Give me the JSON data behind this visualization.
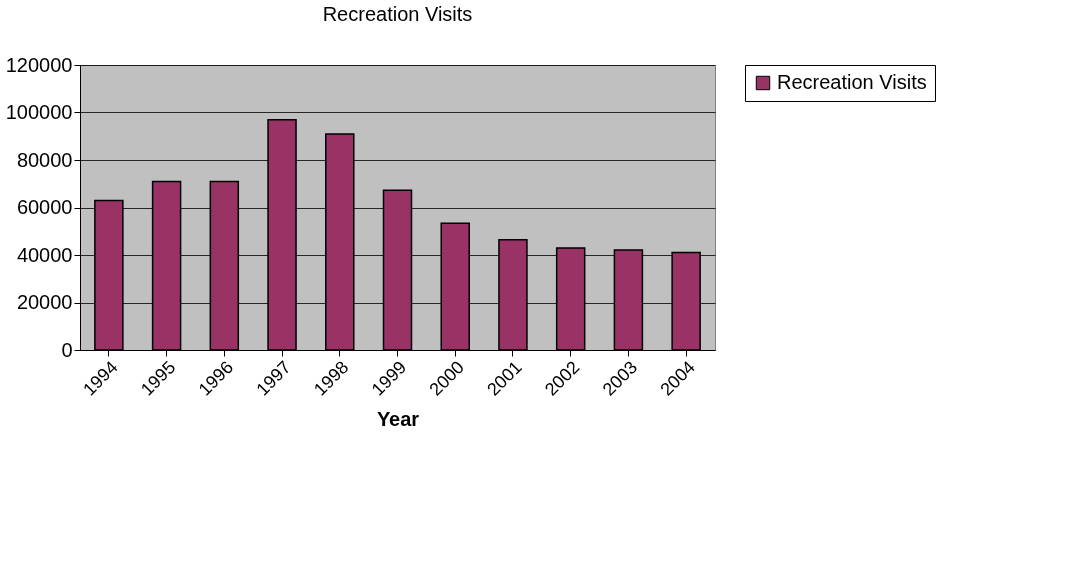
{
  "chart_data": {
    "type": "bar",
    "title": "Recreation Visits",
    "xlabel": "Year",
    "categories": [
      "1994",
      "1995",
      "1996",
      "1997",
      "1998",
      "1999",
      "2000",
      "2001",
      "2002",
      "2003",
      "2004"
    ],
    "series": [
      {
        "name": "Recreation Visits",
        "color": "#993366",
        "values": [
          63000,
          71000,
          71000,
          97000,
          91000,
          67300,
          53400,
          46400,
          42900,
          42100,
          41100
        ]
      }
    ],
    "ylim": [
      0,
      120000
    ],
    "yticks": [
      0,
      20000,
      40000,
      60000,
      80000,
      100000,
      120000
    ],
    "grid": "y",
    "legend": "right"
  }
}
